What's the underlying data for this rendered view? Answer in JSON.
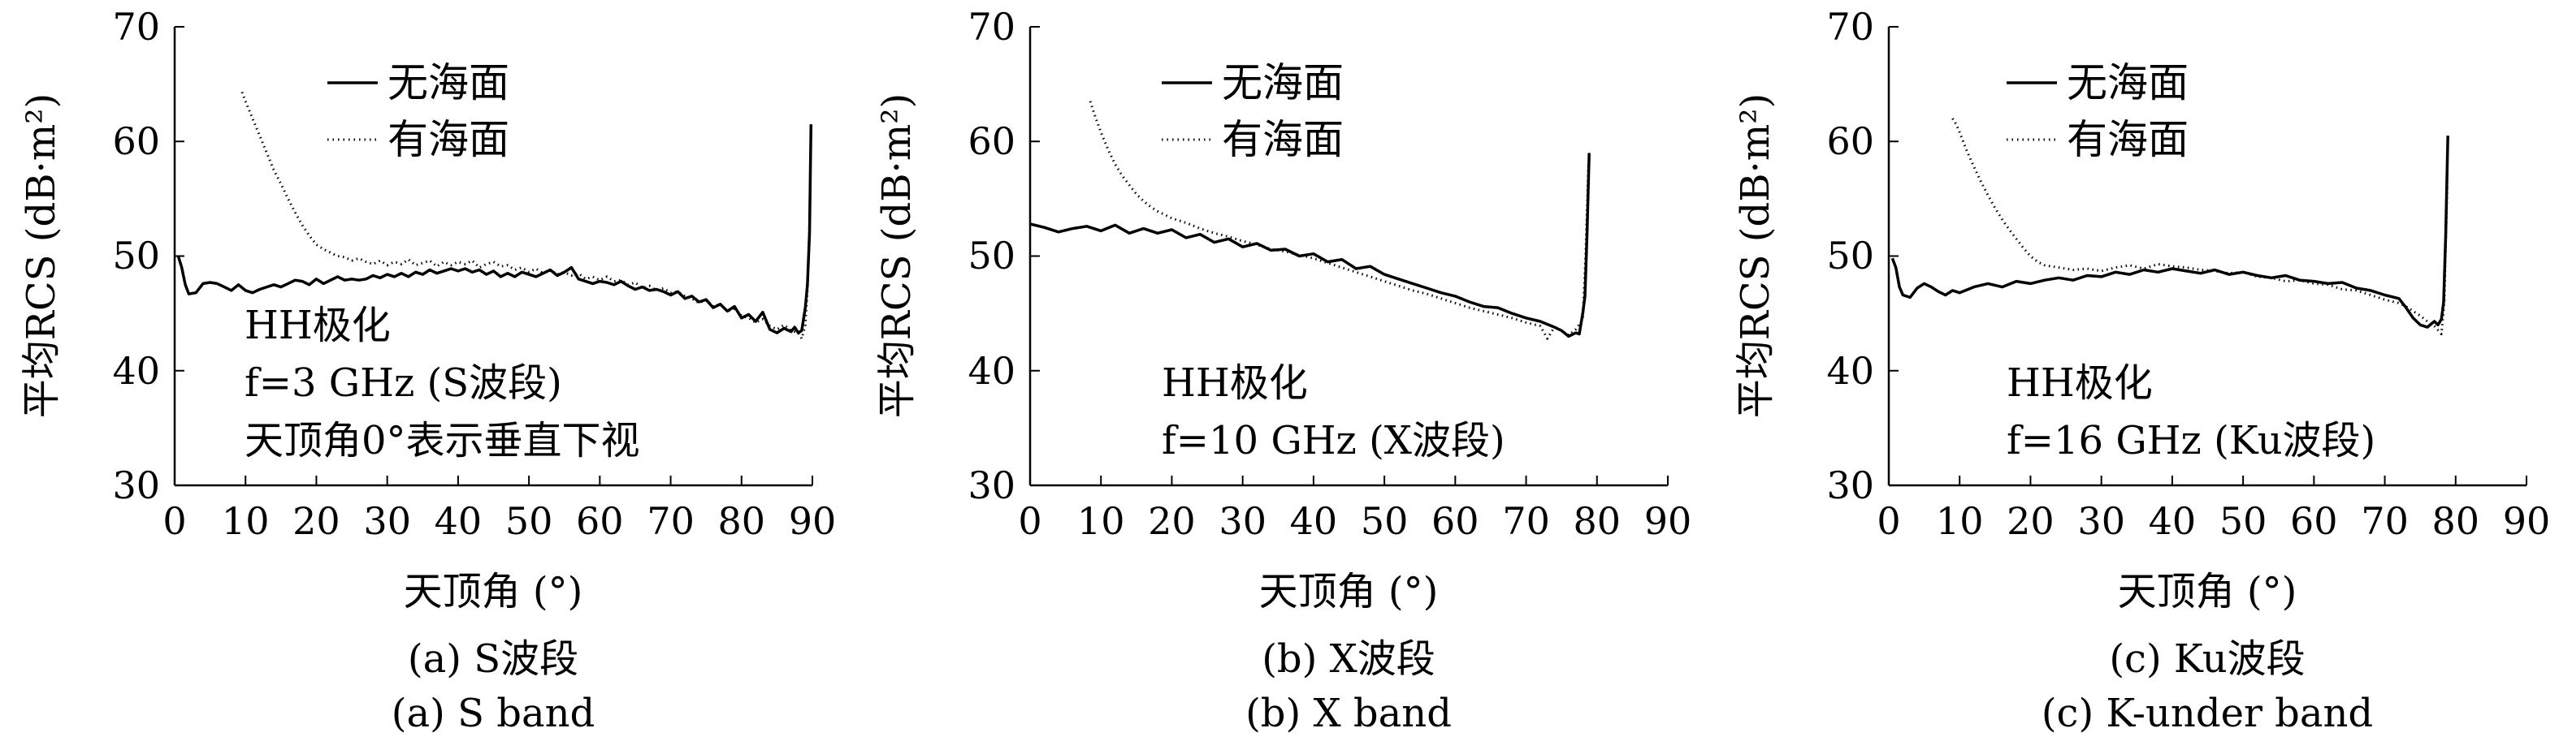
{
  "chart_data": [
    {
      "type": "line",
      "xlabel": "天顶角 (°)",
      "ylabel": "平均RCS (dB·m²)",
      "xlim": [
        0,
        90
      ],
      "ylim": [
        30,
        70
      ],
      "xticks": [
        0,
        10,
        20,
        30,
        40,
        50,
        60,
        70,
        80,
        90
      ],
      "yticks": [
        30,
        40,
        50,
        60,
        70
      ],
      "legend_position": "top",
      "annotation": [
        "HH极化",
        "f=3 GHz (S波段)",
        "天顶角0°表示垂直下视"
      ],
      "caption": [
        "(a) S波段",
        "(a) S band"
      ],
      "series": [
        {
          "name": "无海面",
          "style": "solid",
          "x": [
            0.5,
            1,
            1.5,
            2,
            3,
            4,
            5,
            6,
            7,
            8,
            9,
            10,
            11,
            12,
            13,
            14,
            15,
            16,
            17,
            18,
            19,
            20,
            21,
            22,
            23,
            24,
            25,
            26,
            27,
            28,
            29,
            30,
            31,
            32,
            33,
            34,
            35,
            36,
            37,
            38,
            39,
            40,
            41,
            42,
            43,
            44,
            45,
            46,
            47,
            48,
            49,
            50,
            51,
            52,
            53,
            54,
            55,
            56,
            57,
            58,
            59,
            60,
            61,
            62,
            63,
            64,
            65,
            66,
            67,
            68,
            69,
            70,
            71,
            72,
            73,
            74,
            75,
            76,
            77,
            78,
            79,
            80,
            81,
            82,
            83,
            84,
            85,
            86,
            87,
            87.5,
            88,
            88.5,
            89,
            89.3,
            89.6,
            89.8
          ],
          "values": [
            50,
            49,
            47.5,
            46.7,
            46.8,
            47.6,
            47.7,
            47.6,
            47.3,
            47.0,
            47.5,
            47.0,
            46.8,
            47.1,
            47.3,
            47.5,
            47.3,
            47.6,
            47.9,
            47.8,
            47.5,
            48.0,
            47.6,
            47.9,
            48.2,
            47.9,
            48.0,
            47.9,
            48.0,
            48.3,
            48.1,
            48.4,
            48.2,
            48.5,
            48.2,
            48.6,
            48.4,
            48.8,
            48.5,
            48.7,
            48.9,
            48.7,
            48.9,
            48.6,
            48.8,
            48.4,
            48.7,
            48.2,
            48.5,
            48.2,
            48.6,
            48.4,
            48.2,
            48.5,
            48.8,
            48.3,
            48.6,
            49.0,
            48.0,
            47.8,
            47.6,
            47.8,
            47.7,
            47.5,
            47.8,
            47.4,
            47.1,
            47.3,
            47.0,
            47.1,
            46.9,
            46.6,
            46.9,
            46.3,
            46.5,
            46.0,
            46.2,
            45.5,
            45.8,
            45.2,
            45.6,
            44.6,
            44.9,
            44.3,
            45.1,
            43.6,
            43.3,
            43.7,
            43.4,
            43.8,
            43.3,
            43.5,
            45.5,
            47.5,
            52.0,
            61.5
          ]
        },
        {
          "name": "有海面",
          "style": "dotted",
          "x": [
            9.5,
            10,
            11,
            12,
            13,
            14,
            15,
            16,
            17,
            18,
            19,
            20,
            21,
            22,
            23,
            24,
            25,
            26,
            27,
            28,
            29,
            30,
            31,
            32,
            33,
            34,
            35,
            36,
            37,
            38,
            39,
            40,
            41,
            42,
            43,
            44,
            45,
            46,
            47,
            48,
            49,
            50,
            51,
            52,
            53,
            54,
            55,
            56,
            57,
            58,
            59,
            60,
            61,
            62,
            63,
            64,
            65,
            66,
            67,
            68,
            69,
            70,
            71,
            72,
            73,
            74,
            75,
            76,
            77,
            78,
            79,
            80,
            81,
            82,
            83,
            84,
            85,
            86,
            87,
            88,
            88.5,
            89,
            89.3,
            89.6,
            89.8
          ],
          "values": [
            64.3,
            63.5,
            62.0,
            60.5,
            59.0,
            57.5,
            56.3,
            55.0,
            53.8,
            52.7,
            51.8,
            51.0,
            50.6,
            50.3,
            50.0,
            49.9,
            49.6,
            49.8,
            49.5,
            49.3,
            49.6,
            49.2,
            49.5,
            49.3,
            49.7,
            49.2,
            49.4,
            49.6,
            49.1,
            49.5,
            49.2,
            49.5,
            49.3,
            49.6,
            49.0,
            49.3,
            49.5,
            49.1,
            49.2,
            48.8,
            49.0,
            48.6,
            48.9,
            48.5,
            48.8,
            48.4,
            48.6,
            48.3,
            48.5,
            48.0,
            48.2,
            47.9,
            48.2,
            47.8,
            47.9,
            47.5,
            47.7,
            47.2,
            47.4,
            47.0,
            47.2,
            46.8,
            46.9,
            46.5,
            46.3,
            45.9,
            46.2,
            45.6,
            45.8,
            45.2,
            45.4,
            44.8,
            44.6,
            44.2,
            44.5,
            43.9,
            43.6,
            44.0,
            43.5,
            43.3,
            42.8,
            44.0,
            47.0,
            53.0,
            61.0
          ]
        }
      ]
    },
    {
      "type": "line",
      "xlabel": "天顶角 (°)",
      "ylabel": "平均RCS (dB·m²)",
      "xlim": [
        0,
        90
      ],
      "ylim": [
        30,
        70
      ],
      "xticks": [
        0,
        10,
        20,
        30,
        40,
        50,
        60,
        70,
        80,
        90
      ],
      "yticks": [
        30,
        40,
        50,
        60,
        70
      ],
      "legend_position": "top",
      "annotation": [
        "HH极化",
        "f=10 GHz (X波段)"
      ],
      "caption": [
        "(b) X波段",
        "(b) X band"
      ],
      "series": [
        {
          "name": "无海面",
          "style": "solid",
          "x": [
            0,
            2,
            4,
            6,
            8,
            10,
            12,
            14,
            16,
            18,
            20,
            22,
            24,
            26,
            28,
            30,
            32,
            34,
            36,
            38,
            40,
            42,
            44,
            46,
            48,
            50,
            52,
            54,
            56,
            58,
            60,
            62,
            64,
            66,
            68,
            70,
            72,
            74,
            75,
            76,
            77,
            77.5,
            78,
            78.3,
            78.6,
            78.9
          ],
          "values": [
            52.8,
            52.5,
            52.1,
            52.4,
            52.6,
            52.2,
            52.7,
            52.0,
            52.4,
            52.0,
            52.3,
            51.6,
            51.9,
            51.2,
            51.5,
            50.8,
            51.1,
            50.5,
            50.6,
            50.0,
            50.2,
            49.5,
            49.7,
            48.9,
            49.1,
            48.4,
            48.0,
            47.6,
            47.2,
            46.8,
            46.5,
            46.0,
            45.6,
            45.5,
            45.0,
            44.6,
            44.3,
            43.8,
            43.5,
            43.0,
            43.3,
            43.2,
            45.0,
            46.5,
            52.0,
            59.0
          ]
        },
        {
          "name": "有海面",
          "style": "dotted",
          "x": [
            8.5,
            9,
            10,
            11,
            12,
            13,
            14,
            15,
            16,
            17,
            18,
            19,
            20,
            22,
            24,
            26,
            28,
            30,
            32,
            34,
            36,
            38,
            40,
            42,
            44,
            46,
            48,
            50,
            52,
            54,
            56,
            58,
            60,
            62,
            64,
            66,
            68,
            70,
            72,
            73,
            74,
            75,
            76,
            77,
            78,
            78.4,
            78.8
          ],
          "values": [
            63.5,
            62.5,
            60.8,
            59.3,
            58.0,
            57.0,
            56.2,
            55.4,
            54.8,
            54.3,
            53.9,
            53.6,
            53.3,
            52.9,
            52.4,
            52.0,
            51.7,
            51.3,
            51.0,
            50.6,
            50.4,
            50.1,
            49.8,
            49.4,
            49.0,
            48.6,
            48.2,
            47.8,
            47.4,
            47.0,
            46.7,
            46.3,
            45.9,
            45.5,
            45.2,
            44.9,
            44.6,
            44.2,
            43.9,
            42.8,
            43.8,
            43.5,
            43.1,
            43.6,
            44.5,
            50.0,
            58.0
          ]
        }
      ]
    },
    {
      "type": "line",
      "xlabel": "天顶角 (°)",
      "ylabel": "平均RCS (dB·m²)",
      "xlim": [
        0,
        90
      ],
      "ylim": [
        30,
        70
      ],
      "xticks": [
        0,
        10,
        20,
        30,
        40,
        50,
        60,
        70,
        80,
        90
      ],
      "yticks": [
        30,
        40,
        50,
        60,
        70
      ],
      "legend_position": "top",
      "annotation": [
        "HH极化",
        "f=16 GHz (Ku波段)"
      ],
      "caption": [
        "(c) Ku波段",
        "(c) K-under band"
      ],
      "series": [
        {
          "name": "无海面",
          "style": "solid",
          "x": [
            0.5,
            1,
            1.5,
            2,
            3,
            4,
            5,
            6,
            7,
            8,
            9,
            10,
            12,
            14,
            16,
            18,
            20,
            22,
            24,
            26,
            28,
            30,
            32,
            34,
            36,
            38,
            40,
            42,
            44,
            46,
            48,
            50,
            52,
            54,
            56,
            58,
            60,
            62,
            64,
            66,
            68,
            70,
            72,
            73,
            74,
            75,
            76,
            77,
            77.5,
            78,
            78.3,
            78.6,
            78.9
          ],
          "values": [
            49.8,
            49.0,
            47.3,
            46.6,
            46.4,
            47.2,
            47.6,
            47.3,
            46.9,
            46.6,
            47.0,
            46.8,
            47.3,
            47.6,
            47.3,
            47.8,
            47.6,
            47.9,
            48.1,
            47.9,
            48.3,
            48.2,
            48.6,
            48.4,
            48.8,
            48.6,
            48.9,
            48.7,
            48.5,
            48.8,
            48.4,
            48.6,
            48.3,
            48.1,
            48.3,
            47.9,
            47.8,
            47.6,
            47.7,
            47.2,
            47.0,
            46.6,
            46.3,
            45.5,
            44.6,
            44.0,
            43.8,
            44.3,
            44.0,
            44.5,
            46.0,
            52.0,
            60.5
          ]
        },
        {
          "name": "有海面",
          "style": "dotted",
          "x": [
            9,
            9.5,
            10,
            11,
            12,
            13,
            14,
            15,
            16,
            17,
            18,
            19,
            20,
            21,
            22,
            24,
            26,
            28,
            30,
            32,
            34,
            36,
            38,
            40,
            42,
            44,
            46,
            48,
            50,
            52,
            54,
            56,
            58,
            60,
            62,
            64,
            66,
            68,
            70,
            72,
            73,
            74,
            75,
            76,
            77,
            78,
            78.4,
            78.8
          ],
          "values": [
            62.0,
            61.5,
            60.8,
            59.2,
            57.8,
            56.5,
            55.3,
            54.2,
            53.2,
            52.3,
            51.5,
            50.7,
            50.0,
            49.5,
            49.2,
            49.0,
            48.8,
            48.9,
            48.7,
            49.0,
            49.2,
            48.9,
            49.3,
            49.1,
            49.0,
            48.8,
            48.7,
            48.5,
            48.6,
            48.2,
            48.1,
            47.8,
            47.9,
            47.6,
            47.5,
            47.1,
            47.0,
            46.6,
            46.2,
            45.9,
            45.6,
            45.2,
            44.8,
            44.3,
            43.9,
            43.2,
            46.0,
            56.0
          ]
        }
      ]
    }
  ]
}
